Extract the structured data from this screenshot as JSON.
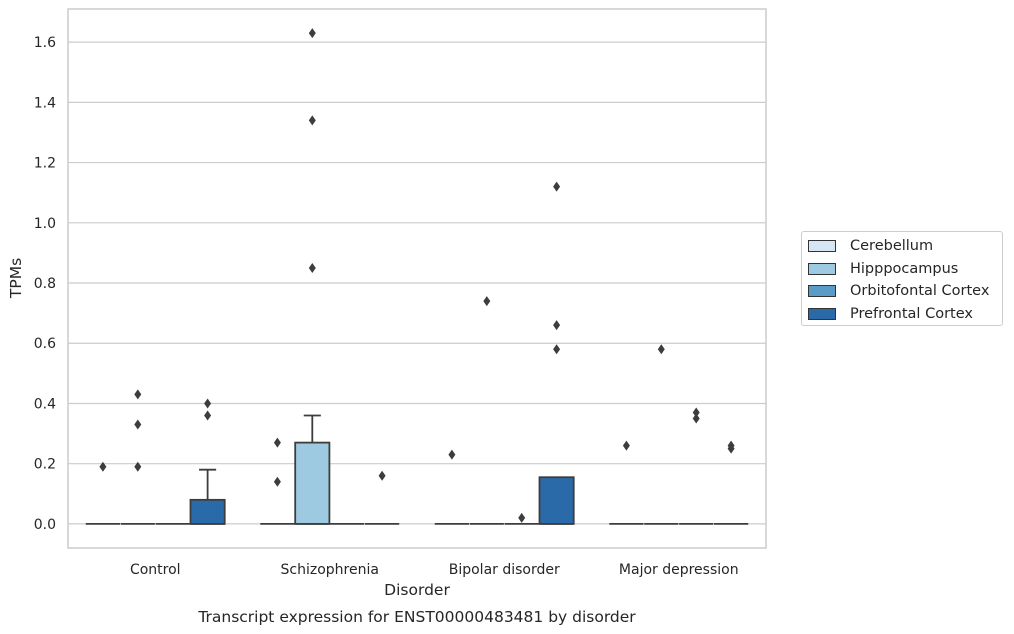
{
  "chart_data": {
    "type": "box",
    "xlabel": "Disorder",
    "ylabel": "TPMs",
    "caption": "Transcript expression for ENST00000483481 by disorder",
    "categories": [
      "Control",
      "Schizophrenia",
      "Bipolar disorder",
      "Major depression"
    ],
    "yticks": [
      "0.0",
      "0.2",
      "0.4",
      "0.6",
      "0.8",
      "1.0",
      "1.2",
      "1.4",
      "1.6"
    ],
    "ylim": [
      -0.08,
      1.71
    ],
    "grid": true,
    "legend_position": "right",
    "series": [
      {
        "name": "Cerebellum",
        "color": "#d6e6f4",
        "boxes": [
          {
            "q1": 0,
            "median": 0,
            "q3": 0,
            "whisker_low": 0,
            "whisker_high": 0,
            "outliers": [
              0.19
            ]
          },
          {
            "q1": 0,
            "median": 0,
            "q3": 0,
            "whisker_low": 0,
            "whisker_high": 0,
            "outliers": [
              0.14,
              0.27
            ]
          },
          {
            "q1": 0,
            "median": 0,
            "q3": 0,
            "whisker_low": 0,
            "whisker_high": 0,
            "outliers": [
              0.23
            ]
          },
          {
            "q1": 0,
            "median": 0,
            "q3": 0,
            "whisker_low": 0,
            "whisker_high": 0,
            "outliers": [
              0.26
            ]
          }
        ]
      },
      {
        "name": "Hipppocampus",
        "color": "#9ecae1",
        "boxes": [
          {
            "q1": 0,
            "median": 0,
            "q3": 0,
            "whisker_low": 0,
            "whisker_high": 0,
            "outliers": [
              0.19,
              0.33,
              0.43
            ]
          },
          {
            "q1": 0,
            "median": 0,
            "q3": 0.27,
            "whisker_low": 0,
            "whisker_high": 0.36,
            "outliers": [
              0.85,
              1.34,
              1.63
            ]
          },
          {
            "q1": 0,
            "median": 0,
            "q3": 0,
            "whisker_low": 0,
            "whisker_high": 0,
            "outliers": [
              0.74
            ]
          },
          {
            "q1": 0,
            "median": 0,
            "q3": 0,
            "whisker_low": 0,
            "whisker_high": 0,
            "outliers": [
              0.58
            ]
          }
        ]
      },
      {
        "name": "Orbitofontal Cortex",
        "color": "#5b9bc8",
        "boxes": [
          {
            "q1": 0,
            "median": 0,
            "q3": 0,
            "whisker_low": 0,
            "whisker_high": 0,
            "outliers": []
          },
          {
            "q1": 0,
            "median": 0,
            "q3": 0,
            "whisker_low": 0,
            "whisker_high": 0,
            "outliers": []
          },
          {
            "q1": 0,
            "median": 0,
            "q3": 0,
            "whisker_low": 0,
            "whisker_high": 0,
            "outliers": [
              0.02
            ]
          },
          {
            "q1": 0,
            "median": 0,
            "q3": 0,
            "whisker_low": 0,
            "whisker_high": 0,
            "outliers": [
              0.35,
              0.37
            ]
          }
        ]
      },
      {
        "name": "Prefrontal Cortex",
        "color": "#2b6aa8",
        "boxes": [
          {
            "q1": 0,
            "median": 0,
            "q3": 0.08,
            "whisker_low": 0,
            "whisker_high": 0.18,
            "outliers": [
              0.36,
              0.4
            ]
          },
          {
            "q1": 0,
            "median": 0,
            "q3": 0,
            "whisker_low": 0,
            "whisker_high": 0,
            "outliers": [
              0.16
            ]
          },
          {
            "q1": 0,
            "median": 0,
            "q3": 0.155,
            "whisker_low": 0,
            "whisker_high": 0.155,
            "outliers": [
              0.58,
              0.66,
              1.12
            ]
          },
          {
            "q1": 0,
            "median": 0,
            "q3": 0,
            "whisker_low": 0,
            "whisker_high": 0,
            "outliers": [
              0.25,
              0.26
            ]
          }
        ]
      }
    ]
  }
}
